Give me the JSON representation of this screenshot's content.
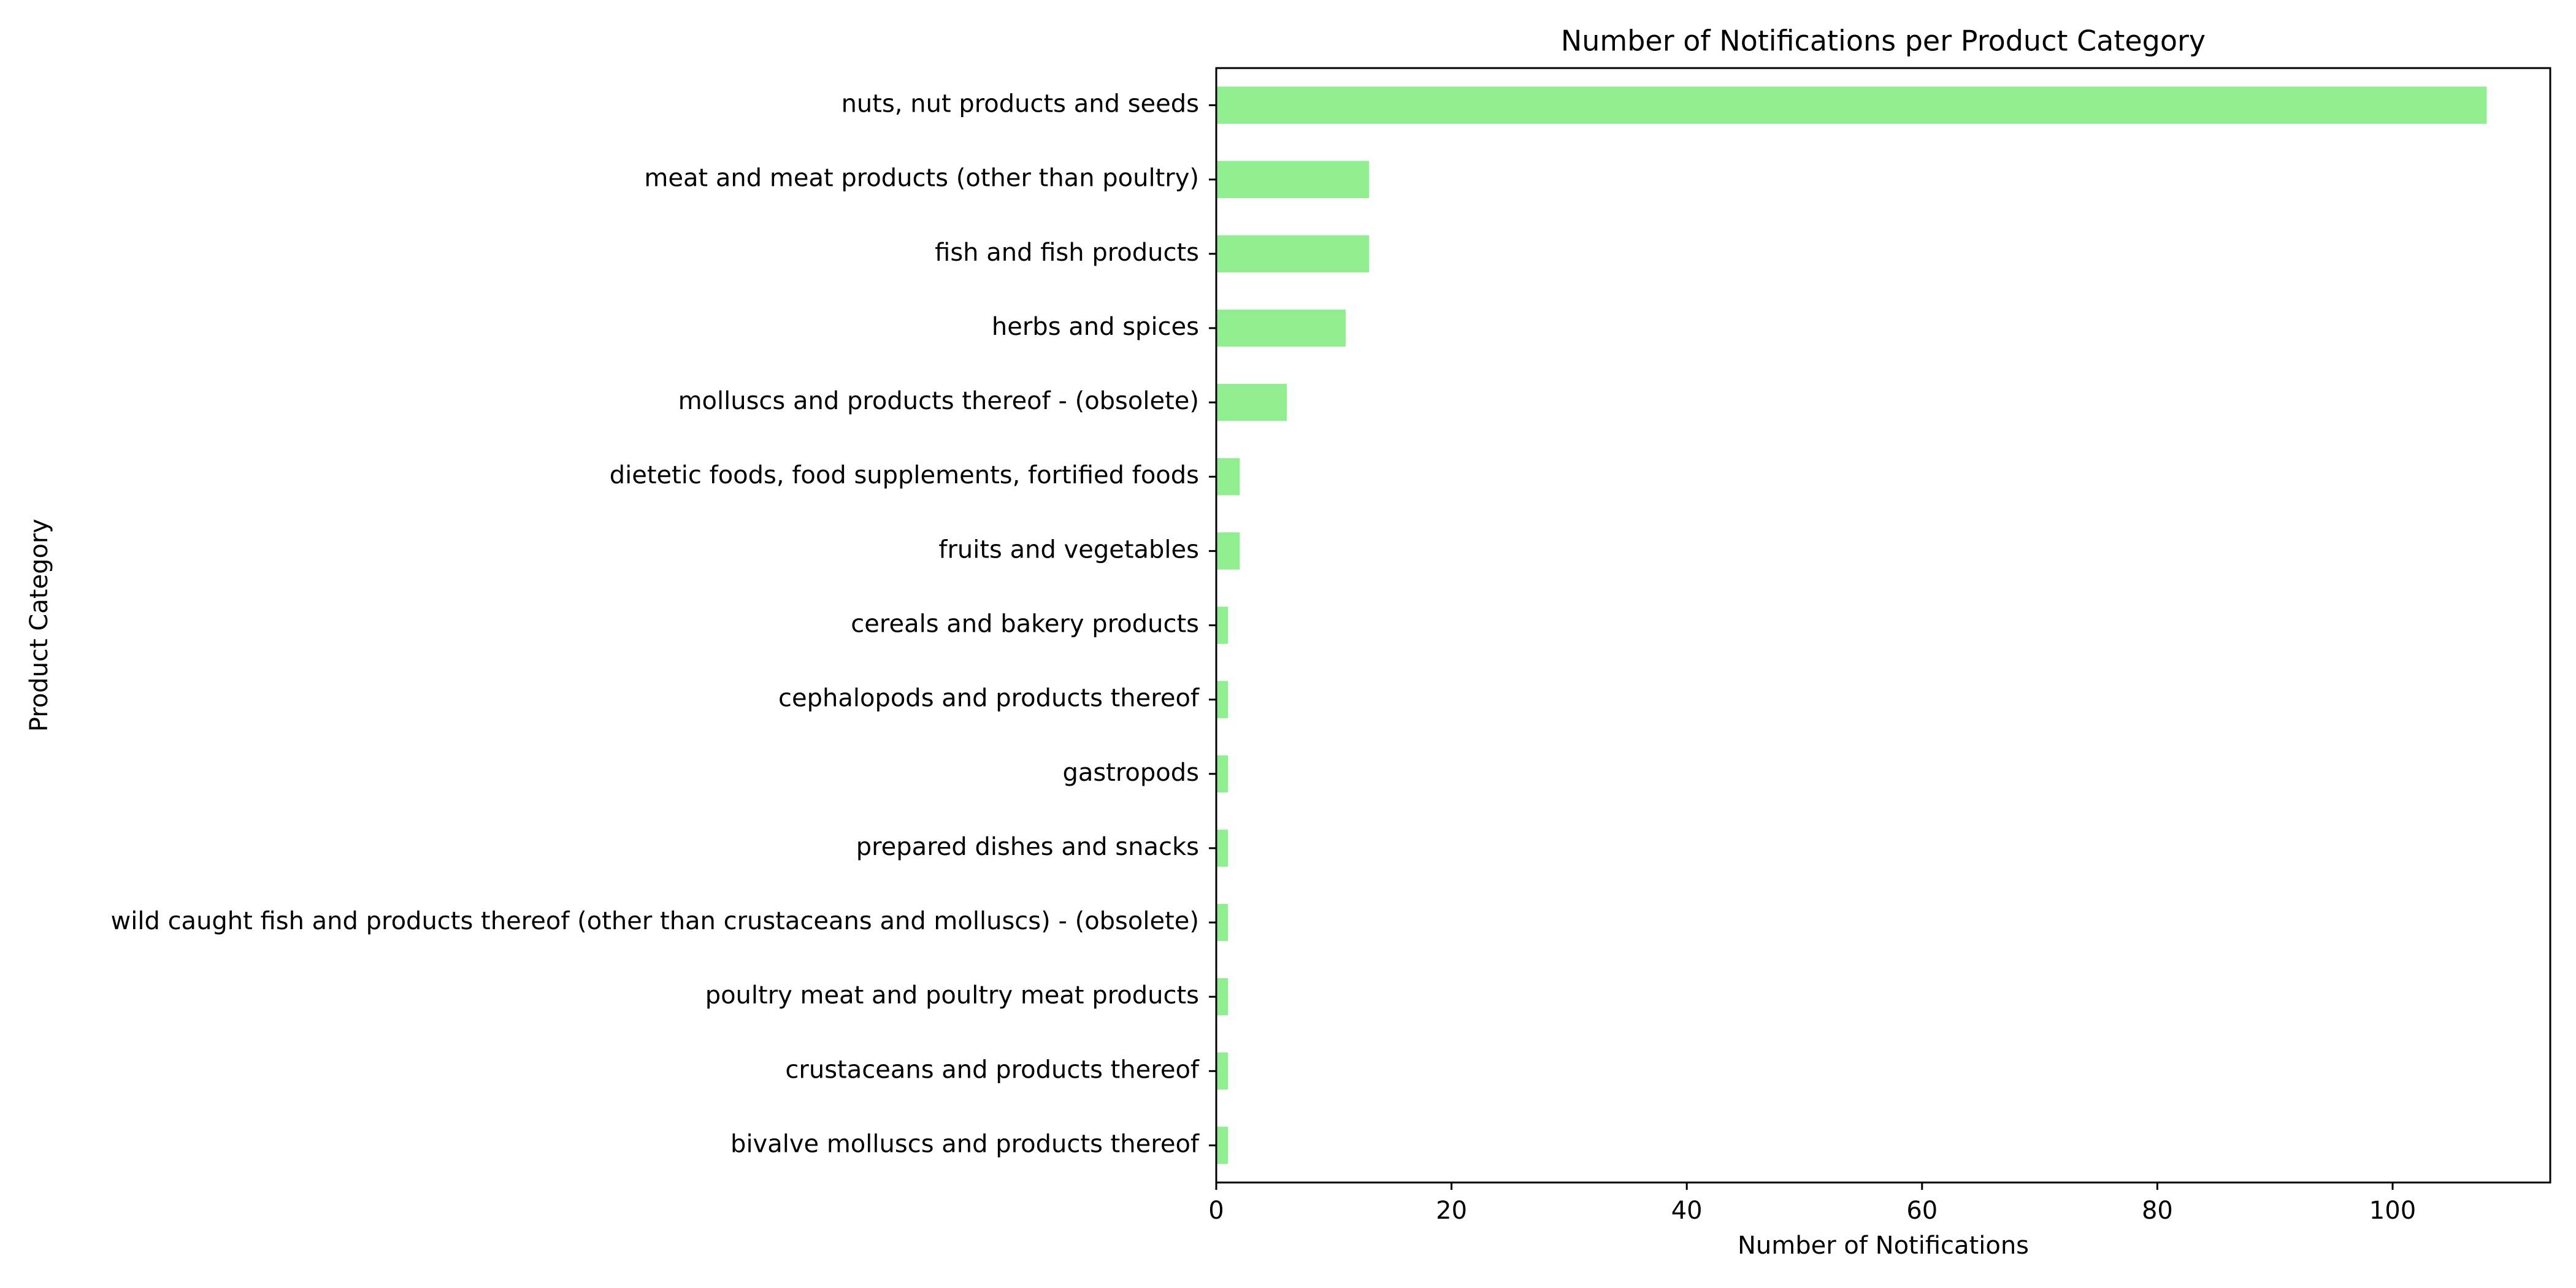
{
  "chart_data": {
    "type": "bar",
    "orientation": "horizontal",
    "title": "Number of Notifications per Product Category",
    "xlabel": "Number of Notifications",
    "ylabel": "Product Category",
    "xlim": [
      0,
      113.4
    ],
    "x_ticks": [
      0,
      20,
      40,
      60,
      80,
      100
    ],
    "grid": false,
    "bar_color": "#90ee90",
    "categories": [
      "nuts, nut products and seeds",
      "meat and meat products (other than poultry)",
      "fish and fish products",
      "herbs and spices",
      "molluscs and products thereof - (obsolete)",
      "dietetic foods, food supplements, fortified foods",
      "fruits and vegetables",
      "cereals and bakery products",
      "cephalopods and products thereof",
      "gastropods",
      "prepared dishes and snacks",
      "wild caught fish and products thereof (other than crustaceans and molluscs) - (obsolete)",
      "poultry meat and poultry meat products",
      "crustaceans and products thereof",
      "bivalve molluscs and products thereof"
    ],
    "values": [
      108,
      13,
      13,
      11,
      6,
      2,
      2,
      1,
      1,
      1,
      1,
      1,
      1,
      1,
      1
    ]
  }
}
